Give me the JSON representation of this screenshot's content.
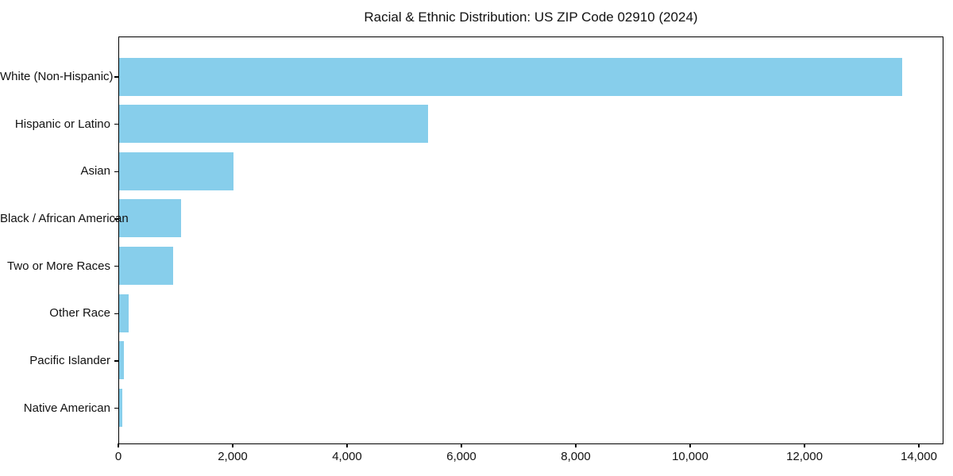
{
  "title": "Racial & Ethnic Distribution: US ZIP Code 02910 (2024)",
  "colors": {
    "bar": "#87CEEB",
    "axis": "#000000",
    "text": "#111111",
    "background": "#ffffff"
  },
  "chart_data": {
    "type": "bar",
    "orientation": "horizontal",
    "title": "Racial & Ethnic Distribution: US ZIP Code 02910 (2024)",
    "categories": [
      "White (Non-Hispanic)",
      "Hispanic or Latino",
      "Asian",
      "Black / African American",
      "Two or More Races",
      "Other Race",
      "Pacific Islander",
      "Native American"
    ],
    "values": [
      13700,
      5400,
      2000,
      1080,
      950,
      165,
      85,
      55
    ],
    "xlabel": "",
    "ylabel": "",
    "xlim": [
      0,
      14430
    ],
    "x_ticks": [
      0,
      2000,
      4000,
      6000,
      8000,
      10000,
      12000,
      14000
    ],
    "x_tick_labels": [
      "0",
      "2,000",
      "4,000",
      "6,000",
      "8,000",
      "10,000",
      "12,000",
      "14,000"
    ],
    "bar_color": "#87CEEB",
    "grid": false,
    "legend": false
  }
}
